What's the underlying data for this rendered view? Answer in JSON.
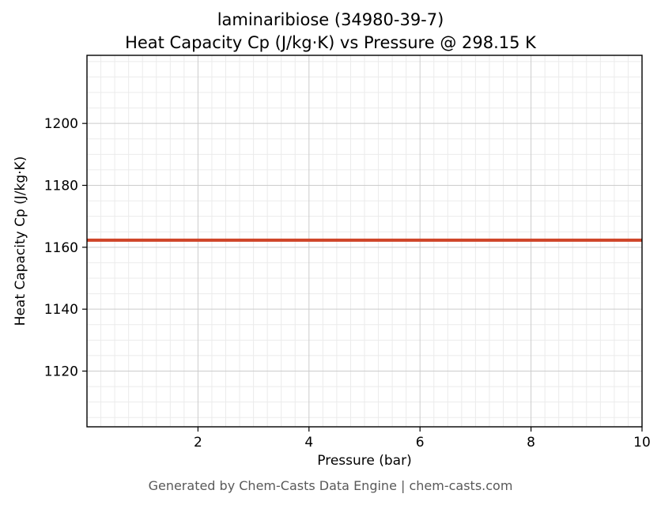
{
  "header": {
    "title_line1": "laminaribiose (34980-39-7)",
    "title_line2": "Heat Capacity Cp (J/kg·K) vs Pressure @ 298.15 K"
  },
  "axes": {
    "xlabel": "Pressure (bar)",
    "ylabel": "Heat Capacity Cp (J/kg·K)"
  },
  "footer": {
    "text": "Generated by Chem-Casts Data Engine | chem-casts.com"
  },
  "chart_data": {
    "type": "line",
    "title": "laminaribiose (34980-39-7)",
    "subtitle": "Heat Capacity Cp (J/kg·K) vs Pressure @ 298.15 K",
    "xlabel": "Pressure (bar)",
    "ylabel": "Heat Capacity Cp (J/kg·K)",
    "xlim": [
      0,
      10
    ],
    "ylim": [
      1102,
      1222
    ],
    "xticks": [
      2,
      4,
      6,
      8,
      10
    ],
    "yticks": [
      1120,
      1140,
      1160,
      1180,
      1200
    ],
    "x_minor_step": 0.25,
    "y_minor_step": 5,
    "grid": "both",
    "legend": "none",
    "series": [
      {
        "name": "Heat Capacity Cp",
        "x": [
          0,
          1,
          2,
          3,
          4,
          5,
          6,
          7,
          8,
          9,
          10
        ],
        "y": [
          1162.3,
          1162.3,
          1162.3,
          1162.3,
          1162.3,
          1162.3,
          1162.3,
          1162.3,
          1162.3,
          1162.3,
          1162.3
        ],
        "color": "#cf4428",
        "linewidth": 4
      }
    ]
  }
}
